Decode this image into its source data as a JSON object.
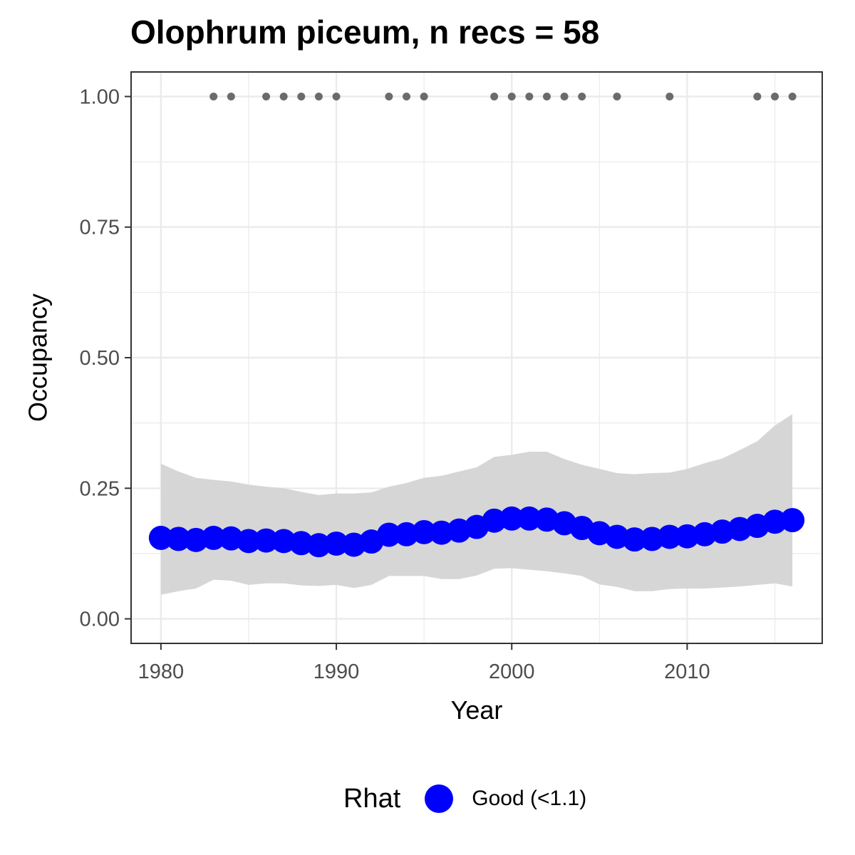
{
  "chart_data": {
    "type": "line",
    "title": "Olophrum piceum, n recs = 58",
    "xlabel": "Year",
    "ylabel": "Occupancy",
    "xlim": [
      1978.3,
      2017.7
    ],
    "ylim": [
      -0.047,
      1.047
    ],
    "x_ticks": [
      1980,
      1990,
      2000,
      2010
    ],
    "x_tick_labels": [
      "1980",
      "1990",
      "2000",
      "2010"
    ],
    "y_ticks": [
      0,
      0.25,
      0.5,
      0.75,
      1
    ],
    "y_tick_labels": [
      "0.00",
      "0.25",
      "0.50",
      "0.75",
      "1.00"
    ],
    "grid": true,
    "legend_position": "bottom",
    "legend_title": "Rhat",
    "legend_entries": [
      "Good (<1.1)"
    ],
    "colors": {
      "estimate": "#0000ff",
      "ribbon": "#d6d6d6",
      "records": "#6b6b6b",
      "grid": "#ebebeb",
      "panel_border": "#333333"
    },
    "years": [
      1980,
      1981,
      1982,
      1983,
      1984,
      1985,
      1986,
      1987,
      1988,
      1989,
      1990,
      1991,
      1992,
      1993,
      1994,
      1995,
      1996,
      1997,
      1998,
      1999,
      2000,
      2001,
      2002,
      2003,
      2004,
      2005,
      2006,
      2007,
      2008,
      2009,
      2010,
      2011,
      2012,
      2013,
      2014,
      2015,
      2016
    ],
    "series": [
      {
        "name": "Good (<1.1)",
        "values": [
          0.155,
          0.153,
          0.151,
          0.155,
          0.154,
          0.149,
          0.15,
          0.149,
          0.145,
          0.141,
          0.144,
          0.142,
          0.148,
          0.161,
          0.162,
          0.166,
          0.165,
          0.169,
          0.176,
          0.188,
          0.192,
          0.192,
          0.19,
          0.183,
          0.174,
          0.164,
          0.157,
          0.152,
          0.153,
          0.157,
          0.158,
          0.162,
          0.167,
          0.172,
          0.178,
          0.186,
          0.189
        ]
      }
    ],
    "ribbon": {
      "lower": [
        0.046,
        0.053,
        0.058,
        0.075,
        0.073,
        0.065,
        0.068,
        0.068,
        0.064,
        0.063,
        0.065,
        0.059,
        0.065,
        0.082,
        0.082,
        0.082,
        0.076,
        0.076,
        0.083,
        0.096,
        0.097,
        0.094,
        0.091,
        0.087,
        0.082,
        0.066,
        0.061,
        0.053,
        0.053,
        0.057,
        0.058,
        0.058,
        0.06,
        0.062,
        0.065,
        0.068,
        0.062
      ],
      "upper": [
        0.297,
        0.282,
        0.27,
        0.266,
        0.263,
        0.257,
        0.253,
        0.25,
        0.243,
        0.237,
        0.24,
        0.24,
        0.242,
        0.253,
        0.26,
        0.27,
        0.274,
        0.282,
        0.29,
        0.31,
        0.314,
        0.32,
        0.32,
        0.306,
        0.295,
        0.287,
        0.279,
        0.277,
        0.279,
        0.28,
        0.287,
        0.298,
        0.307,
        0.323,
        0.34,
        0.37,
        0.392
      ]
    },
    "records": {
      "years": [
        1983,
        1984,
        1986,
        1987,
        1988,
        1989,
        1990,
        1993,
        1994,
        1995,
        1999,
        2000,
        2001,
        2002,
        2003,
        2004,
        2006,
        2009,
        2014,
        2015,
        2016
      ],
      "value": 1.0
    }
  }
}
